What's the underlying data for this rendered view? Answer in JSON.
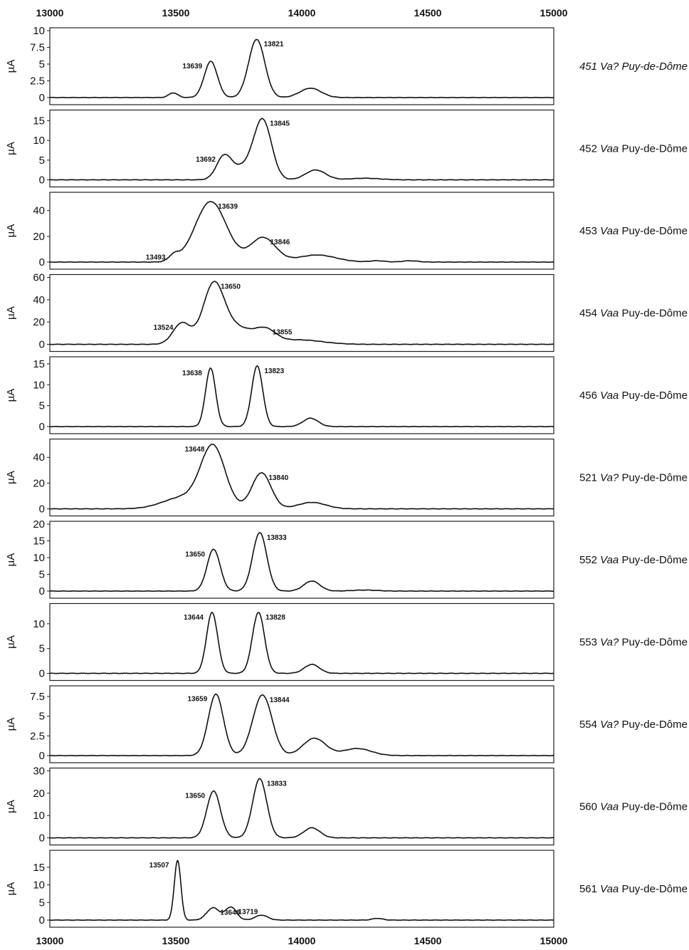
{
  "chart_data": {
    "type": "line",
    "xlim": [
      13000,
      15000
    ],
    "x_ticks": [
      "13000",
      "13500",
      "14000",
      "14500",
      "15000"
    ],
    "xlabel": "",
    "ylabel": "µA",
    "grid": false,
    "legend": "none",
    "panels": [
      {
        "sample": "451",
        "taxon": "Va?",
        "region": "Puy-de-Dôme",
        "all_italic": true,
        "ylim": [
          0,
          10
        ],
        "y_ticks": [
          "0",
          "2.5",
          "5",
          "7.5",
          "10"
        ],
        "peaks": [
          {
            "x": 13490,
            "h": 0.7,
            "w": 18
          },
          {
            "x": 13639,
            "h": 5.4,
            "w": 26
          },
          {
            "x": 13821,
            "h": 8.7,
            "w": 32
          },
          {
            "x": 14035,
            "h": 1.4,
            "w": 42
          }
        ],
        "peak_labels": [
          "13639",
          "13821"
        ]
      },
      {
        "sample": "452",
        "taxon": "Vaa",
        "region": "Puy-de-Dôme",
        "all_italic": false,
        "ylim": [
          0,
          17
        ],
        "y_ticks": [
          "0",
          "5",
          "10",
          "15"
        ],
        "peaks": [
          {
            "x": 13692,
            "h": 6,
            "w": 30
          },
          {
            "x": 13770,
            "h": 3,
            "w": 40
          },
          {
            "x": 13845,
            "h": 15,
            "w": 35
          },
          {
            "x": 14055,
            "h": 2.5,
            "w": 40
          },
          {
            "x": 14250,
            "h": 0.4,
            "w": 60
          }
        ],
        "peak_labels": [
          "13692",
          "13845"
        ]
      },
      {
        "sample": "453",
        "taxon": "Vaa",
        "region": "Puy-de-Dôme",
        "all_italic": false,
        "ylim": [
          0,
          52
        ],
        "y_ticks": [
          "0",
          "20",
          "40"
        ],
        "peaks": [
          {
            "x": 13493,
            "h": 4.5,
            "w": 20
          },
          {
            "x": 13639,
            "h": 47,
            "w": 62
          },
          {
            "x": 13846,
            "h": 19,
            "w": 50
          },
          {
            "x": 14060,
            "h": 5.5,
            "w": 75
          },
          {
            "x": 14300,
            "h": 1,
            "w": 30
          },
          {
            "x": 14430,
            "h": 1,
            "w": 30
          }
        ],
        "peak_labels": [
          "13493",
          "13639",
          "13846"
        ]
      },
      {
        "sample": "454",
        "taxon": "Vaa",
        "region": "Puy-de-Dôme",
        "all_italic": false,
        "ylim": [
          0,
          60
        ],
        "y_ticks": [
          "0",
          "20",
          "40",
          "60"
        ],
        "peaks": [
          {
            "x": 13524,
            "h": 19,
            "w": 35
          },
          {
            "x": 13650,
            "h": 53,
            "w": 42
          },
          {
            "x": 13745,
            "h": 14,
            "w": 55
          },
          {
            "x": 13855,
            "h": 12,
            "w": 42
          },
          {
            "x": 13990,
            "h": 4,
            "w": 90
          }
        ],
        "peak_labels": [
          "13524",
          "13650",
          "13855"
        ]
      },
      {
        "sample": "456",
        "taxon": "Vaa",
        "region": "Puy-de-Dôme",
        "all_italic": false,
        "ylim": [
          0,
          16
        ],
        "y_ticks": [
          "0",
          "5",
          "10",
          "15"
        ],
        "peaks": [
          {
            "x": 13638,
            "h": 14,
            "w": 20
          },
          {
            "x": 13823,
            "h": 14.5,
            "w": 22
          },
          {
            "x": 14035,
            "h": 2,
            "w": 30
          }
        ],
        "peak_labels": [
          "13638",
          "13823"
        ]
      },
      {
        "sample": "521",
        "taxon": "Va?",
        "region": "Puy-de-Dôme",
        "all_italic": false,
        "ylim": [
          0,
          52
        ],
        "y_ticks": [
          "0",
          "20",
          "40"
        ],
        "peaks": [
          {
            "x": 13648,
            "h": 47,
            "w": 48
          },
          {
            "x": 13530,
            "h": 9,
            "w": 80
          },
          {
            "x": 13840,
            "h": 28,
            "w": 38
          },
          {
            "x": 14040,
            "h": 5,
            "w": 55
          }
        ],
        "peak_labels": [
          "13648",
          "13840"
        ]
      },
      {
        "sample": "552",
        "taxon": "Vaa",
        "region": "Puy-de-Dôme",
        "all_italic": false,
        "ylim": [
          0,
          20
        ],
        "y_ticks": [
          "0",
          "5",
          "10",
          "15",
          "20"
        ],
        "peaks": [
          {
            "x": 13650,
            "h": 12.5,
            "w": 26
          },
          {
            "x": 13833,
            "h": 17.5,
            "w": 28
          },
          {
            "x": 14040,
            "h": 3,
            "w": 32
          },
          {
            "x": 14250,
            "h": 0.3,
            "w": 50
          }
        ],
        "peak_labels": [
          "13650",
          "13833"
        ]
      },
      {
        "sample": "553",
        "taxon": "Va?",
        "region": "Puy-de-Dôme",
        "all_italic": false,
        "ylim": [
          0,
          13.5
        ],
        "y_ticks": [
          "0",
          "5",
          "10"
        ],
        "peaks": [
          {
            "x": 13644,
            "h": 12.3,
            "w": 22
          },
          {
            "x": 13828,
            "h": 12.3,
            "w": 24
          },
          {
            "x": 14040,
            "h": 1.8,
            "w": 30
          }
        ],
        "peak_labels": [
          "13644",
          "13828"
        ]
      },
      {
        "sample": "554",
        "taxon": "Va?",
        "region": "Puy-de-Dôme",
        "all_italic": false,
        "ylim": [
          0,
          8.5
        ],
        "y_ticks": [
          "0",
          "2.5",
          "5",
          "7.5"
        ],
        "peaks": [
          {
            "x": 13659,
            "h": 7.8,
            "w": 30
          },
          {
            "x": 13844,
            "h": 7.7,
            "w": 38
          },
          {
            "x": 14050,
            "h": 2.2,
            "w": 45
          },
          {
            "x": 14220,
            "h": 0.9,
            "w": 55
          }
        ],
        "peak_labels": [
          "13659",
          "13844"
        ]
      },
      {
        "sample": "560",
        "taxon": "Vaa",
        "region": "Puy-de-Dôme",
        "all_italic": false,
        "ylim": [
          0,
          30
        ],
        "y_ticks": [
          "0",
          "10",
          "20",
          "30"
        ],
        "peaks": [
          {
            "x": 13650,
            "h": 21,
            "w": 27
          },
          {
            "x": 13833,
            "h": 26.5,
            "w": 28
          },
          {
            "x": 14040,
            "h": 4.5,
            "w": 32
          }
        ],
        "peak_labels": [
          "13650",
          "13833"
        ]
      },
      {
        "sample": "561",
        "taxon": "Vaa",
        "region": "Puy-de-Dôme",
        "all_italic": false,
        "ylim": [
          0,
          19
        ],
        "y_ticks": [
          "0",
          "5",
          "10",
          "15"
        ],
        "peaks": [
          {
            "x": 13507,
            "h": 17,
            "w": 13
          },
          {
            "x": 13648,
            "h": 3.5,
            "w": 25
          },
          {
            "x": 13719,
            "h": 3.7,
            "w": 22
          },
          {
            "x": 13840,
            "h": 1.4,
            "w": 25
          },
          {
            "x": 14300,
            "h": 0.5,
            "w": 20
          }
        ],
        "peak_labels": [
          "13507",
          "13648",
          "13719"
        ]
      }
    ]
  }
}
